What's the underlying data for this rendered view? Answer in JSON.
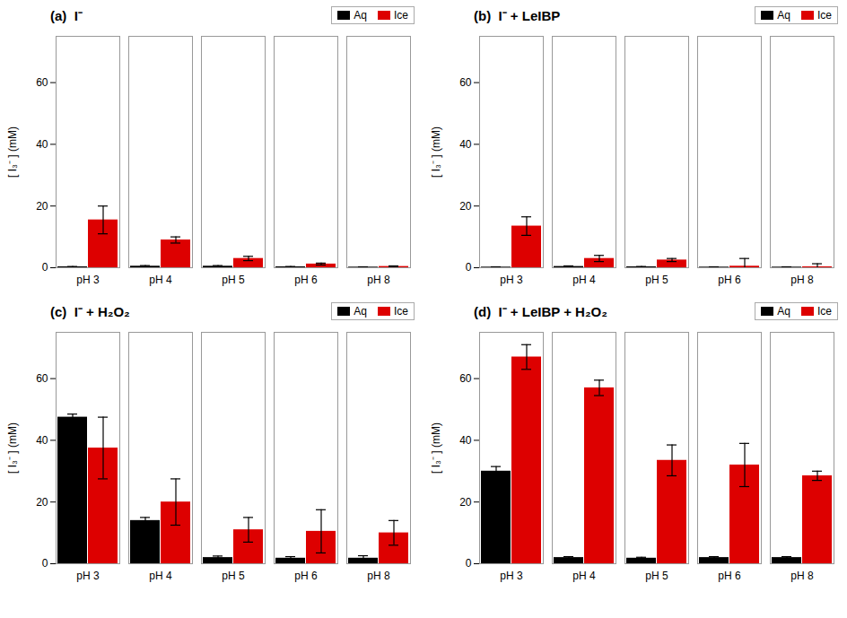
{
  "chart_data": [
    {
      "type": "bar",
      "title": "(a)  I⁻",
      "ylabel": "[ I₃⁻ ] (mM)",
      "categories": [
        "pH 3",
        "pH 4",
        "pH 5",
        "pH 6",
        "pH 8"
      ],
      "series": [
        {
          "name": "Aq",
          "color": "#000000",
          "values": [
            0.3,
            0.5,
            0.5,
            0.3,
            0.2
          ],
          "errors": [
            0.1,
            0.2,
            0.2,
            0.1,
            0.1
          ]
        },
        {
          "name": "Ice",
          "color": "#dd0000",
          "values": [
            15.5,
            9.0,
            3.0,
            1.2,
            0.4
          ],
          "errors": [
            4.5,
            1.0,
            0.7,
            0.3,
            0.2
          ]
        }
      ],
      "ylim": [
        0,
        75
      ],
      "yticks": [
        0,
        20,
        40,
        60
      ],
      "grid": false,
      "legend": "upper right"
    },
    {
      "type": "bar",
      "title": "(b)  I⁻ + LeIBP",
      "ylabel": "[ I₃⁻ ] (mM)",
      "categories": [
        "pH 3",
        "pH 4",
        "pH 5",
        "pH 6",
        "pH 8"
      ],
      "series": [
        {
          "name": "Aq",
          "color": "#000000",
          "values": [
            0.2,
            0.4,
            0.3,
            0.2,
            0.2
          ],
          "errors": [
            0.1,
            0.2,
            0.1,
            0.1,
            0.1
          ]
        },
        {
          "name": "Ice",
          "color": "#dd0000",
          "values": [
            13.5,
            3.0,
            2.5,
            0.5,
            0.3
          ],
          "errors": [
            3.0,
            1.0,
            0.5,
            2.5,
            1.0
          ]
        }
      ],
      "ylim": [
        0,
        75
      ],
      "yticks": [
        0,
        20,
        40,
        60
      ],
      "grid": false,
      "legend": "upper right"
    },
    {
      "type": "bar",
      "title": "(c)  I⁻ + H₂O₂",
      "ylabel": "[ I₃⁻ ] (mM)",
      "categories": [
        "pH 3",
        "pH 4",
        "pH 5",
        "pH 6",
        "pH 8"
      ],
      "series": [
        {
          "name": "Aq",
          "color": "#000000",
          "values": [
            47.5,
            14.0,
            2.0,
            1.8,
            1.8
          ],
          "errors": [
            1.0,
            1.0,
            0.5,
            0.5,
            0.8
          ]
        },
        {
          "name": "Ice",
          "color": "#dd0000",
          "values": [
            37.5,
            20.0,
            11.0,
            10.5,
            10.0
          ],
          "errors": [
            10.0,
            7.5,
            4.0,
            7.0,
            4.0
          ]
        }
      ],
      "ylim": [
        0,
        75
      ],
      "yticks": [
        0,
        20,
        40,
        60
      ],
      "grid": false,
      "legend": "upper right"
    },
    {
      "type": "bar",
      "title": "(d)  I⁻ + LeIBP + H₂O₂",
      "ylabel": "[ I₃⁻ ] (mM)",
      "categories": [
        "pH 3",
        "pH 4",
        "pH 5",
        "pH 6",
        "pH 8"
      ],
      "series": [
        {
          "name": "Aq",
          "color": "#000000",
          "values": [
            30.0,
            2.0,
            1.8,
            2.0,
            2.0
          ],
          "errors": [
            1.5,
            0.3,
            0.3,
            0.3,
            0.3
          ]
        },
        {
          "name": "Ice",
          "color": "#dd0000",
          "values": [
            67.0,
            57.0,
            33.5,
            32.0,
            28.5
          ],
          "errors": [
            4.0,
            2.5,
            5.0,
            7.0,
            1.5
          ]
        }
      ],
      "ylim": [
        0,
        75
      ],
      "yticks": [
        0,
        20,
        40,
        60
      ],
      "grid": false,
      "legend": "upper right"
    }
  ]
}
